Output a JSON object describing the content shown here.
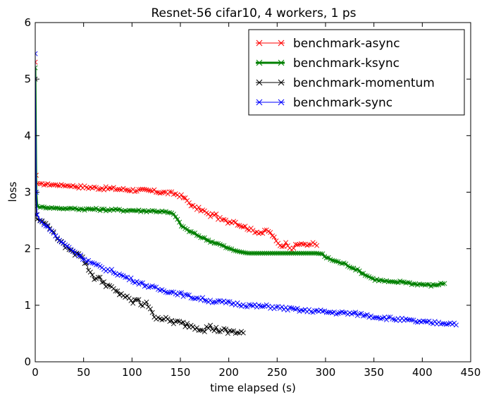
{
  "chart_data": {
    "type": "line",
    "title": "Resnet-56 cifar10, 4 workers, 1 ps",
    "xlabel": "time elapsed (s)",
    "ylabel": "loss",
    "xlim": [
      0,
      450
    ],
    "ylim": [
      0,
      6
    ],
    "x_ticks": [
      "0",
      "50",
      "100",
      "150",
      "200",
      "250",
      "300",
      "350",
      "400",
      "450"
    ],
    "y_ticks": [
      "0",
      "1",
      "2",
      "3",
      "4",
      "5",
      "6"
    ],
    "x_tick_values": [
      0,
      50,
      100,
      150,
      200,
      250,
      300,
      350,
      400,
      450
    ],
    "y_tick_values": [
      0,
      1,
      2,
      3,
      4,
      5,
      6
    ],
    "grid": false,
    "legend_position": "top-right",
    "series": [
      {
        "name": "benchmark-async",
        "color": "#ff0000",
        "marker": "x",
        "x": [
          0,
          1,
          2,
          5,
          10,
          20,
          30,
          40,
          50,
          60,
          70,
          80,
          90,
          100,
          110,
          120,
          130,
          140,
          145,
          150,
          155,
          160,
          165,
          170,
          175,
          180,
          185,
          190,
          195,
          200,
          205,
          210,
          215,
          220,
          225,
          230,
          235,
          240,
          245,
          250,
          255,
          260,
          265,
          270,
          275,
          280,
          285,
          290,
          292
        ],
        "y": [
          5.3,
          3.3,
          3.15,
          3.14,
          3.14,
          3.13,
          3.12,
          3.11,
          3.09,
          3.08,
          3.07,
          3.06,
          3.05,
          3.04,
          3.03,
          3.02,
          3.0,
          2.98,
          2.97,
          2.94,
          2.88,
          2.8,
          2.72,
          2.7,
          2.66,
          2.58,
          2.62,
          2.53,
          2.5,
          2.47,
          2.5,
          2.43,
          2.4,
          2.36,
          2.32,
          2.3,
          2.28,
          2.33,
          2.24,
          2.1,
          2.05,
          2.1,
          2.0,
          2.06,
          2.1,
          2.05,
          2.1,
          2.07,
          2.05
        ]
      },
      {
        "name": "benchmark-ksync",
        "color": "#008000",
        "marker": "x",
        "x": [
          0,
          1,
          2,
          5,
          10,
          20,
          30,
          40,
          50,
          60,
          70,
          80,
          90,
          100,
          110,
          120,
          130,
          140,
          145,
          150,
          155,
          160,
          170,
          180,
          190,
          200,
          210,
          220,
          230,
          240,
          250,
          260,
          270,
          280,
          290,
          295,
          300,
          310,
          320,
          330,
          340,
          350,
          360,
          370,
          380,
          390,
          400,
          410,
          420,
          424
        ],
        "y": [
          5.2,
          3.0,
          2.75,
          2.74,
          2.73,
          2.72,
          2.71,
          2.71,
          2.7,
          2.7,
          2.69,
          2.69,
          2.68,
          2.68,
          2.67,
          2.67,
          2.66,
          2.63,
          2.58,
          2.42,
          2.36,
          2.3,
          2.22,
          2.14,
          2.08,
          2.0,
          1.95,
          1.92,
          1.92,
          1.92,
          1.92,
          1.92,
          1.92,
          1.92,
          1.92,
          1.92,
          1.85,
          1.78,
          1.73,
          1.65,
          1.55,
          1.46,
          1.43,
          1.4,
          1.42,
          1.38,
          1.37,
          1.35,
          1.38,
          1.4
        ]
      },
      {
        "name": "benchmark-momentum",
        "color": "#000000",
        "marker": "x",
        "x": [
          0,
          1,
          2,
          5,
          10,
          15,
          20,
          25,
          30,
          35,
          40,
          45,
          50,
          55,
          60,
          65,
          70,
          75,
          80,
          85,
          90,
          95,
          100,
          105,
          110,
          115,
          120,
          125,
          130,
          135,
          140,
          145,
          150,
          155,
          160,
          165,
          170,
          175,
          180,
          185,
          190,
          195,
          200,
          205,
          210,
          215
        ],
        "y": [
          5.0,
          2.6,
          2.52,
          2.5,
          2.45,
          2.38,
          2.25,
          2.15,
          2.05,
          2.0,
          1.92,
          1.95,
          1.8,
          1.65,
          1.5,
          1.48,
          1.42,
          1.35,
          1.28,
          1.22,
          1.2,
          1.12,
          1.05,
          1.1,
          1.0,
          1.08,
          0.85,
          0.8,
          0.78,
          0.74,
          0.72,
          0.7,
          0.68,
          0.66,
          0.65,
          0.62,
          0.6,
          0.58,
          0.62,
          0.58,
          0.56,
          0.55,
          0.52,
          0.55,
          0.5,
          0.52
        ]
      },
      {
        "name": "benchmark-sync",
        "color": "#0000ff",
        "marker": "x",
        "x": [
          0,
          1,
          2,
          5,
          10,
          15,
          20,
          25,
          30,
          35,
          40,
          50,
          60,
          70,
          80,
          90,
          100,
          110,
          120,
          130,
          140,
          150,
          160,
          170,
          180,
          190,
          200,
          210,
          220,
          230,
          240,
          250,
          260,
          270,
          280,
          290,
          300,
          310,
          320,
          330,
          340,
          350,
          360,
          370,
          380,
          390,
          400,
          410,
          420,
          430,
          435
        ],
        "y": [
          5.45,
          3.0,
          2.6,
          2.5,
          2.42,
          2.35,
          2.25,
          2.15,
          2.08,
          2.02,
          1.95,
          1.83,
          1.73,
          1.65,
          1.6,
          1.52,
          1.45,
          1.38,
          1.32,
          1.27,
          1.24,
          1.2,
          1.15,
          1.12,
          1.08,
          1.06,
          1.04,
          1.02,
          1.0,
          0.98,
          0.98,
          0.96,
          0.94,
          0.92,
          0.9,
          0.9,
          0.88,
          0.87,
          0.86,
          0.85,
          0.83,
          0.8,
          0.78,
          0.76,
          0.74,
          0.72,
          0.7,
          0.69,
          0.69,
          0.68,
          0.68
        ]
      }
    ]
  }
}
